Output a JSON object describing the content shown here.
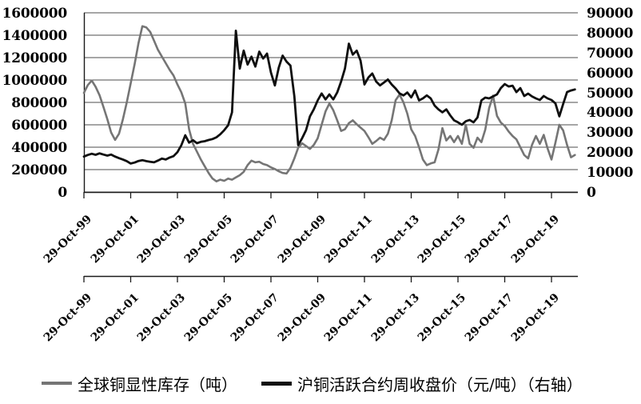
{
  "chart_data": {
    "type": "line",
    "title": "",
    "x_axis": {
      "labels": [
        "29-Oct-99",
        "29-Oct-01",
        "29-Oct-03",
        "29-Oct-05",
        "29-Oct-07",
        "29-Oct-09",
        "29-Oct-11",
        "29-Oct-13",
        "29-Oct-15",
        "29-Oct-17",
        "29-Oct-19"
      ],
      "label_rows": 2,
      "rotation_deg": -45,
      "start_year": 1999.83,
      "step_years": 0.1666667,
      "years_per_tick": 2
    },
    "left_axis": {
      "min": 0,
      "max": 1600000,
      "tick": 200000,
      "labels": [
        "1600000",
        "1400000",
        "1200000",
        "1000000",
        "800000",
        "600000",
        "400000",
        "200000",
        "0"
      ]
    },
    "right_axis": {
      "min": 0,
      "max": 90000,
      "tick": 10000,
      "labels": [
        "90000",
        "80000",
        "70000",
        "60000",
        "50000",
        "40000",
        "30000",
        "20000",
        "10000",
        "0"
      ]
    },
    "grid": "horizontal",
    "legend_position": "bottom",
    "colors": {
      "grid": "#4d4d4d",
      "axis": "#1a1a1a",
      "background": "#ffffff"
    },
    "series": [
      {
        "id": "inventory",
        "name": "全球铜显性库存（吨）",
        "axis": "left",
        "color": "#757575",
        "width": 2.6,
        "values": [
          885000,
          955000,
          995000,
          940000,
          865000,
          760000,
          650000,
          530000,
          465000,
          520000,
          650000,
          800000,
          970000,
          1140000,
          1330000,
          1480000,
          1470000,
          1430000,
          1350000,
          1270000,
          1210000,
          1150000,
          1090000,
          1040000,
          960000,
          890000,
          790000,
          560000,
          430000,
          360000,
          290000,
          230000,
          170000,
          120000,
          95000,
          110000,
          100000,
          120000,
          110000,
          130000,
          150000,
          180000,
          240000,
          280000,
          265000,
          270000,
          250000,
          240000,
          220000,
          205000,
          185000,
          170000,
          165000,
          215000,
          300000,
          395000,
          435000,
          410000,
          385000,
          420000,
          480000,
          600000,
          720000,
          790000,
          730000,
          640000,
          545000,
          560000,
          615000,
          640000,
          605000,
          575000,
          545000,
          490000,
          430000,
          455000,
          485000,
          465000,
          520000,
          640000,
          820000,
          870000,
          800000,
          700000,
          560000,
          500000,
          400000,
          290000,
          240000,
          255000,
          265000,
          380000,
          570000,
          460000,
          500000,
          445000,
          500000,
          430000,
          600000,
          430000,
          395000,
          485000,
          445000,
          555000,
          750000,
          860000,
          680000,
          620000,
          590000,
          540000,
          500000,
          470000,
          400000,
          330000,
          300000,
          420000,
          500000,
          430000,
          510000,
          390000,
          290000,
          440000,
          600000,
          550000,
          420000,
          310000,
          330000
        ]
      },
      {
        "id": "price",
        "name": "沪铜活跃合约周收盘价（元/吨）（右轴）",
        "axis": "right",
        "color": "#0f0f0f",
        "width": 2.8,
        "values": [
          17800,
          18600,
          19200,
          18700,
          19400,
          18800,
          18300,
          18800,
          17800,
          17000,
          16300,
          15500,
          14300,
          14800,
          15600,
          16000,
          15500,
          15200,
          14900,
          15800,
          16800,
          16300,
          17300,
          18000,
          20000,
          23500,
          28500,
          24800,
          26000,
          24500,
          25200,
          25500,
          26100,
          26600,
          27500,
          29000,
          31000,
          33500,
          40000,
          81000,
          62000,
          71000,
          64000,
          68000,
          63000,
          70500,
          67000,
          69500,
          60000,
          53500,
          62500,
          68500,
          65500,
          63500,
          48000,
          23500,
          27000,
          31000,
          38000,
          41500,
          46000,
          49500,
          46500,
          49000,
          46500,
          50000,
          55500,
          62000,
          74500,
          69000,
          71000,
          66000,
          54000,
          57500,
          59500,
          55500,
          53500,
          55000,
          56500,
          54000,
          52000,
          49500,
          48500,
          50000,
          47500,
          51000,
          46000,
          47000,
          48500,
          47000,
          43400,
          41500,
          40000,
          41500,
          38500,
          36000,
          35000,
          33800,
          35500,
          36200,
          35000,
          37400,
          46000,
          47400,
          47000,
          48000,
          49000,
          52200,
          54200,
          53000,
          53400,
          50200,
          52200,
          48200,
          49400,
          48000,
          47000,
          46200,
          48200,
          47000,
          46200,
          44500,
          38000,
          44200,
          50200,
          51000,
          51500
        ]
      }
    ]
  },
  "legend": {
    "items": [
      {
        "label": "全球铜显性库存（吨）"
      },
      {
        "label": "沪铜活跃合约周收盘价（元/吨）（右轴）"
      }
    ]
  }
}
